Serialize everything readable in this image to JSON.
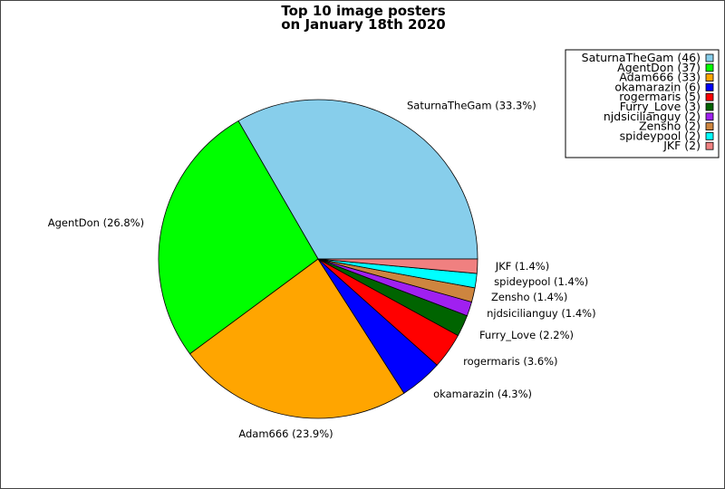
{
  "chart_data": {
    "type": "pie",
    "title_lines": [
      "Top 10 image posters",
      "on January 18th 2020"
    ],
    "slices": [
      {
        "name": "SaturnaTheGam",
        "value": 46,
        "percent_label": "SaturnaTheGam (33.3%)",
        "legend_label": "SaturnaTheGam (46)",
        "color": "#87CEEB"
      },
      {
        "name": "AgentDon",
        "value": 37,
        "percent_label": "AgentDon (26.8%)",
        "legend_label": "AgentDon (37)",
        "color": "#00FF00"
      },
      {
        "name": "Adam666",
        "value": 33,
        "percent_label": "Adam666 (23.9%)",
        "legend_label": "Adam666 (33)",
        "color": "#FFA500"
      },
      {
        "name": "okamarazin",
        "value": 6,
        "percent_label": "okamarazin (4.3%)",
        "legend_label": "okamarazin (6)",
        "color": "#0000FF"
      },
      {
        "name": "rogermaris",
        "value": 5,
        "percent_label": "rogermaris (3.6%)",
        "legend_label": "rogermaris (5)",
        "color": "#FF0000"
      },
      {
        "name": "Furry_Love",
        "value": 3,
        "percent_label": "Furry_Love (2.2%)",
        "legend_label": "Furry_Love (3)",
        "color": "#006400"
      },
      {
        "name": "njdsicilianguy",
        "value": 2,
        "percent_label": "njdsicilianguy (1.4%)",
        "legend_label": "njdsicilianguy (2)",
        "color": "#A020F0"
      },
      {
        "name": "Zensho",
        "value": 2,
        "percent_label": "Zensho (1.4%)",
        "legend_label": "Zensho (2)",
        "color": "#CD853F"
      },
      {
        "name": "spideypool",
        "value": 2,
        "percent_label": "spideypool (1.4%)",
        "legend_label": "spideypool (2)",
        "color": "#00FFFF"
      },
      {
        "name": "JKF",
        "value": 2,
        "percent_label": "JKF (1.4%)",
        "legend_label": "JKF (2)",
        "color": "#F08080"
      }
    ],
    "legend_position": "top-right"
  }
}
